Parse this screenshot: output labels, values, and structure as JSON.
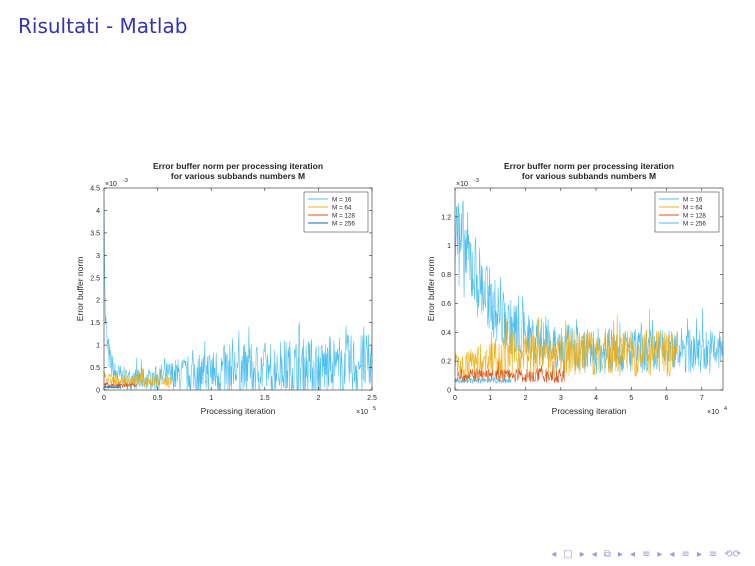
{
  "slide": {
    "title": "Risultati - Matlab"
  },
  "colors": {
    "m16": "#4dbeee",
    "m64": "#edb120",
    "m128": "#d95319",
    "m256": "#0072bd",
    "m256_right": "#4dbeee",
    "m16_right": "#4dbeee"
  },
  "nav": {
    "first": "◂",
    "box": "□",
    "next": "▸",
    "first2": "◂",
    "frame": "⧉",
    "next2": "▸",
    "prev3": "◂",
    "eq1": "≡",
    "next3": "▸",
    "prev4": "◂",
    "eq2": "≡",
    "next4": "▸",
    "dash": "≡",
    "search": "⟲⟳"
  },
  "chart_data": [
    {
      "type": "line",
      "title": "Error buffer norm per processing iteration",
      "subtitle": "for various subbands numbers M",
      "xlabel": "Processing iteration",
      "ylabel": "Error buffer norm",
      "x_multiplier": "×10",
      "x_exponent": "5",
      "y_multiplier": "×10",
      "y_exponent": "-3",
      "xlim": [
        0,
        2.5
      ],
      "ylim": [
        0,
        4.5
      ],
      "xticks": [
        {
          "v": 0,
          "label": "0"
        },
        {
          "v": 0.5,
          "label": "0.5"
        },
        {
          "v": 1,
          "label": "1"
        },
        {
          "v": 1.5,
          "label": "1.5"
        },
        {
          "v": 2,
          "label": "2"
        },
        {
          "v": 2.5,
          "label": "2.5"
        }
      ],
      "yticks": [
        {
          "v": 0,
          "label": "0"
        },
        {
          "v": 0.5,
          "label": "0.5"
        },
        {
          "v": 1,
          "label": "1"
        },
        {
          "v": 1.5,
          "label": "1.5"
        },
        {
          "v": 2,
          "label": "2"
        },
        {
          "v": 2.5,
          "label": "2.5"
        },
        {
          "v": 3,
          "label": "3"
        },
        {
          "v": 3.5,
          "label": "3.5"
        },
        {
          "v": 4,
          "label": "4"
        },
        {
          "v": 4.5,
          "label": "4.5"
        }
      ],
      "grid": false,
      "legend": "top-right",
      "series": [
        {
          "name": "M = 16",
          "color": "#4dbeee",
          "x": [
            0,
            0.01,
            0.03,
            0.06,
            0.1,
            0.2,
            0.4,
            0.6,
            0.8,
            1.0,
            1.2,
            1.4,
            1.6,
            1.8,
            2.0,
            2.2,
            2.5
          ],
          "y_base": [
            4.4,
            1.7,
            1.0,
            0.6,
            0.35,
            0.25,
            0.25,
            0.3,
            0.35,
            0.4,
            0.45,
            0.45,
            0.5,
            0.5,
            0.5,
            0.55,
            0.55
          ],
          "y_amp": [
            0.2,
            0.4,
            0.4,
            0.35,
            0.3,
            0.25,
            0.25,
            0.35,
            0.45,
            0.55,
            0.6,
            0.6,
            0.65,
            0.65,
            0.7,
            0.7,
            0.7
          ]
        },
        {
          "name": "M = 64",
          "color": "#edb120",
          "x": [
            0,
            0.03,
            0.1,
            0.3,
            0.5,
            0.63
          ],
          "y_base": [
            0.4,
            0.25,
            0.2,
            0.2,
            0.2,
            0.2
          ],
          "y_amp": [
            0.1,
            0.12,
            0.14,
            0.15,
            0.15,
            0.15
          ]
        },
        {
          "name": "M = 128",
          "color": "#d95319",
          "x": [
            0,
            0.1,
            0.2,
            0.31
          ],
          "y_base": [
            0.12,
            0.1,
            0.1,
            0.1
          ],
          "y_amp": [
            0.05,
            0.05,
            0.05,
            0.05
          ]
        },
        {
          "name": "M = 256",
          "color": "#0072bd",
          "x": [
            0,
            0.08,
            0.16
          ],
          "y_base": [
            0.07,
            0.06,
            0.06
          ],
          "y_amp": [
            0.02,
            0.02,
            0.02
          ]
        }
      ]
    },
    {
      "type": "line",
      "title": "Error buffer norm per processing iteration",
      "subtitle": "for various subbands numbers M",
      "xlabel": "Processing iteration",
      "ylabel": "Error buffer norm",
      "x_multiplier": "×10",
      "x_exponent": "4",
      "y_multiplier": "×10",
      "y_exponent": "-3",
      "xlim": [
        0,
        7.6
      ],
      "ylim": [
        0,
        1.4
      ],
      "xticks": [
        {
          "v": 0,
          "label": "0"
        },
        {
          "v": 1,
          "label": "1"
        },
        {
          "v": 2,
          "label": "2"
        },
        {
          "v": 3,
          "label": "3"
        },
        {
          "v": 4,
          "label": "4"
        },
        {
          "v": 5,
          "label": "5"
        },
        {
          "v": 6,
          "label": "6"
        },
        {
          "v": 7,
          "label": "7"
        }
      ],
      "yticks": [
        {
          "v": 0,
          "label": "0"
        },
        {
          "v": 0.2,
          "label": "0.2"
        },
        {
          "v": 0.4,
          "label": "0.4"
        },
        {
          "v": 0.6,
          "label": "0.6"
        },
        {
          "v": 0.8,
          "label": "0.8"
        },
        {
          "v": 1,
          "label": "1"
        },
        {
          "v": 1.2,
          "label": "1.2"
        }
      ],
      "grid": false,
      "legend": "top-right",
      "series": [
        {
          "name": "M = 16",
          "color": "#4dbeee",
          "x": [
            0,
            0.2,
            0.5,
            0.8,
            1.0,
            1.5,
            2.0,
            2.5,
            3.0,
            3.5,
            4.0,
            4.5,
            5.0,
            5.5,
            6.0,
            6.5,
            7.0,
            7.6
          ],
          "y_base": [
            1.1,
            1.0,
            0.85,
            0.7,
            0.6,
            0.45,
            0.38,
            0.33,
            0.3,
            0.28,
            0.27,
            0.27,
            0.27,
            0.27,
            0.27,
            0.27,
            0.27,
            0.27
          ],
          "y_amp": [
            0.35,
            0.35,
            0.3,
            0.25,
            0.22,
            0.2,
            0.18,
            0.17,
            0.17,
            0.16,
            0.16,
            0.16,
            0.16,
            0.16,
            0.16,
            0.16,
            0.16,
            0.16
          ]
        },
        {
          "name": "M = 64",
          "color": "#edb120",
          "x": [
            0,
            0.2,
            0.5,
            1.0,
            2.0,
            3.0,
            4.0,
            5.0,
            6.3
          ],
          "y_base": [
            0.18,
            0.16,
            0.18,
            0.22,
            0.25,
            0.25,
            0.25,
            0.25,
            0.25
          ],
          "y_amp": [
            0.1,
            0.1,
            0.12,
            0.15,
            0.16,
            0.16,
            0.16,
            0.16,
            0.16
          ]
        },
        {
          "name": "M = 128",
          "color": "#d95319",
          "x": [
            0,
            0.5,
            1.0,
            2.0,
            3.1
          ],
          "y_base": [
            0.1,
            0.1,
            0.1,
            0.1,
            0.1
          ],
          "y_amp": [
            0.05,
            0.05,
            0.05,
            0.05,
            0.05
          ]
        },
        {
          "name": "M = 256",
          "color": "#4dbeee",
          "x": [
            0,
            0.5,
            1.0,
            1.6
          ],
          "y_base": [
            0.065,
            0.065,
            0.065,
            0.065
          ],
          "y_amp": [
            0.02,
            0.02,
            0.02,
            0.02
          ]
        }
      ]
    }
  ]
}
